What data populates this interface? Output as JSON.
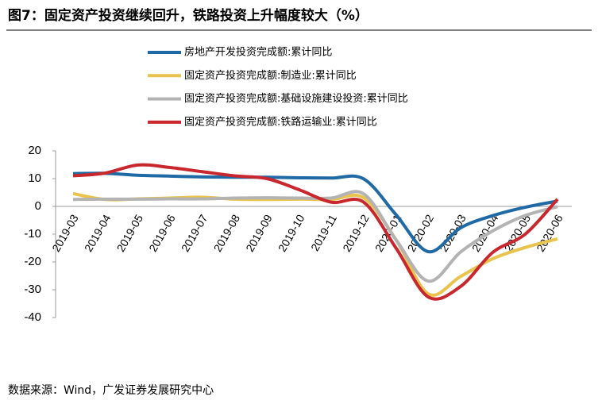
{
  "chart_data": {
    "type": "line",
    "title": "图7：固定资产投资继续回升，铁路投资上升幅度较大（%）",
    "source": "数据来源：Wind，广发证券发展研究中心",
    "categories": [
      "2019-03",
      "2019-04",
      "2019-05",
      "2019-06",
      "2019-07",
      "2019-08",
      "2019-09",
      "2019-10",
      "2019-11",
      "2019-12",
      "2020-01",
      "2020-02",
      "2020-03",
      "2020-04",
      "2020-05",
      "2020-06"
    ],
    "series": [
      {
        "name": "房地产开发投资完成额:累计同比",
        "color": "#1f6aa5",
        "values": [
          11.8,
          11.9,
          11.2,
          10.9,
          10.6,
          10.5,
          10.5,
          10.3,
          10.2,
          9.9,
          -3,
          -16.3,
          -7.7,
          -3.3,
          -0.3,
          1.9
        ]
      },
      {
        "name": "固定资产投资完成额:制造业:累计同比",
        "color": "#e8c34e",
        "values": [
          4.6,
          2.5,
          2.7,
          3.0,
          3.3,
          2.6,
          2.5,
          2.6,
          2.5,
          3.1,
          -12,
          -31.5,
          -25.2,
          -18.8,
          -14.8,
          -11.7
        ]
      },
      {
        "name": "固定资产投资完成额:基础设施建设投资:累计同比",
        "color": "#b3b3b3",
        "values": [
          2.5,
          2.6,
          2.6,
          2.7,
          2.7,
          3.0,
          3.1,
          3.0,
          3.0,
          4.5,
          -12,
          -26.9,
          -16.4,
          -8.8,
          -3.3,
          -0.1
        ]
      },
      {
        "name": "固定资产投资完成额:铁路运输业:累计同比",
        "color": "#c8282d",
        "values": [
          11.0,
          12.0,
          14.9,
          14.0,
          12.5,
          11.0,
          10.0,
          6.0,
          1.5,
          1.5,
          -15,
          -32.6,
          -28.8,
          -16.5,
          -10,
          2.6
        ]
      }
    ],
    "ylim": [
      -40,
      20
    ],
    "yticks": [
      20,
      10,
      0,
      -10,
      -20,
      -30,
      -40
    ],
    "grid": false
  }
}
